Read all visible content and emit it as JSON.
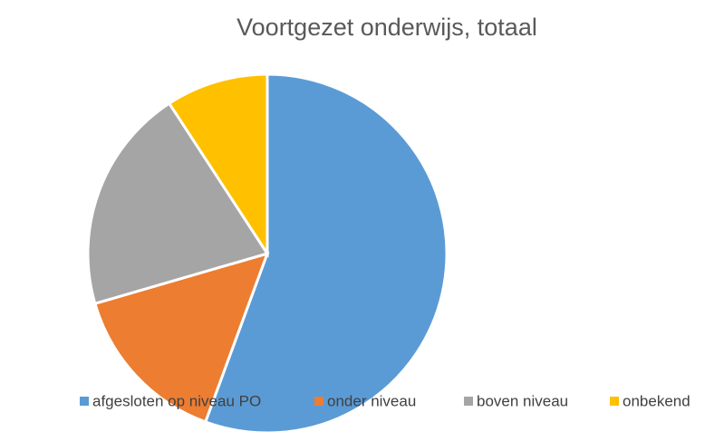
{
  "chart_data": {
    "type": "pie",
    "title": "Voortgezet onderwijs, totaal",
    "categories": [
      "afgesloten op niveau PO",
      "onder niveau",
      "boven niveau",
      "onbekend"
    ],
    "values": [
      55.6,
      14.9,
      20.3,
      9.2
    ],
    "colors": [
      "#5b9bd5",
      "#ed7d31",
      "#a5a5a5",
      "#ffc000"
    ],
    "legend": "bottom"
  }
}
